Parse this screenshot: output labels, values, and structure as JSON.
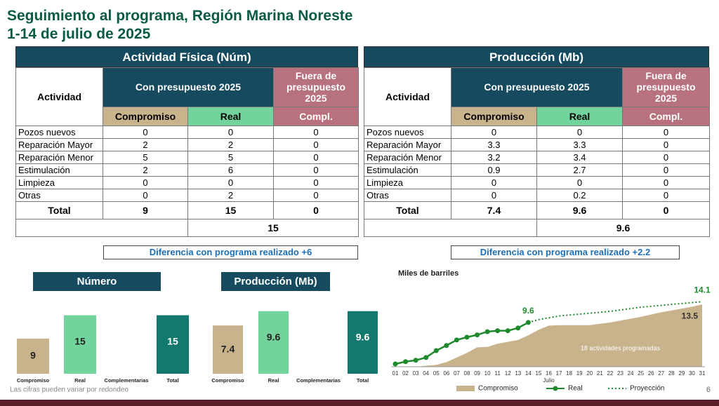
{
  "title_line1": "Seguimiento al programa, Región Marina Noreste",
  "title_line2": "1-14 de julio de 2025",
  "tables": [
    {
      "title": "Actividad Física (Núm)",
      "header_actividad": "Actividad",
      "header_con": "Con presupuesto 2025",
      "header_fuera": "Fuera de presupuesto 2025",
      "header_comp": "Compromiso",
      "header_real": "Real",
      "header_compl": "Compl.",
      "rows": [
        [
          "Pozos nuevos",
          0,
          0,
          0
        ],
        [
          "Reparación Mayor",
          2,
          2,
          0
        ],
        [
          "Reparación Menor",
          5,
          5,
          0
        ],
        [
          "Estimulación",
          2,
          6,
          0
        ],
        [
          "Limpieza",
          0,
          0,
          0
        ],
        [
          "Otras",
          0,
          2,
          0
        ]
      ],
      "total": [
        "Total",
        9,
        15,
        0
      ],
      "total_sum": 15,
      "difference": "Diferencia con programa realizado  +6"
    },
    {
      "title": "Producción (Mb)",
      "header_actividad": "Actividad",
      "header_con": "Con presupuesto 2025",
      "header_fuera": "Fuera de presupuesto 2025",
      "header_comp": "Compromiso",
      "header_real": "Real",
      "header_compl": "Compl.",
      "rows": [
        [
          "Pozos nuevos",
          0,
          0,
          0
        ],
        [
          "Reparación Mayor",
          3.3,
          3.3,
          0
        ],
        [
          "Reparación Menor",
          3.2,
          3.4,
          0
        ],
        [
          "Estimulación",
          0.9,
          2.7,
          0
        ],
        [
          "Limpieza",
          0,
          0,
          0
        ],
        [
          "Otras",
          0,
          0.2,
          0
        ]
      ],
      "total": [
        "Total",
        7.4,
        9.6,
        0
      ],
      "total_sum": 9.6,
      "difference": "Diferencia con programa realizado +2.2"
    }
  ],
  "chart_data": [
    {
      "type": "bar",
      "title": "Número",
      "categories": [
        "Compromiso",
        "Real",
        "Complementarias",
        "Total"
      ],
      "values": [
        9,
        15,
        null,
        15
      ],
      "colors": [
        "#c8b38c",
        "#72d39c",
        null,
        "#13786e"
      ],
      "ylim": [
        0,
        16
      ]
    },
    {
      "type": "bar",
      "title": "Producción (Mb)",
      "categories": [
        "Compromiso",
        "Real",
        "Complementarias",
        "Total"
      ],
      "values": [
        7.4,
        9.6,
        null,
        9.6
      ],
      "colors": [
        "#c8b38c",
        "#72d39c",
        null,
        "#13786e"
      ],
      "ylim": [
        0,
        10
      ]
    },
    {
      "type": "line",
      "title": "Miles de barriles",
      "x_label": "Julio",
      "annotation": "18 actividades programadas",
      "categories": [
        "01",
        "02",
        "03",
        "04",
        "05",
        "06",
        "07",
        "08",
        "09",
        "10",
        "11",
        "12",
        "13",
        "14",
        "15",
        "16",
        "17",
        "18",
        "19",
        "20",
        "21",
        "22",
        "23",
        "24",
        "25",
        "26",
        "27",
        "28",
        "29",
        "30",
        "31"
      ],
      "ylim": [
        0,
        15.5
      ],
      "series": [
        {
          "name": "Compromiso",
          "kind": "area",
          "color": "#c8b38c",
          "values": [
            0,
            0,
            0,
            0.2,
            0.4,
            1.0,
            2.0,
            3.0,
            4.2,
            4.3,
            5.0,
            5.4,
            5.8,
            6.8,
            8.0,
            8.9,
            9.0,
            9.0,
            9.0,
            9.0,
            9.3,
            9.6,
            10.0,
            10.4,
            10.8,
            11.3,
            11.8,
            12.2,
            12.6,
            13.0,
            13.5
          ]
        },
        {
          "name": "Real",
          "kind": "line",
          "color": "#1e8a2c",
          "values": [
            0.6,
            1.1,
            1.4,
            2.0,
            3.5,
            4.6,
            5.8,
            6.4,
            6.9,
            7.6,
            7.8,
            7.8,
            8.4,
            9.6,
            null,
            null,
            null,
            null,
            null,
            null,
            null,
            null,
            null,
            null,
            null,
            null,
            null,
            null,
            null,
            null,
            null
          ]
        },
        {
          "name": "Proyección",
          "kind": "dotted",
          "color": "#1e8a2c",
          "values": [
            null,
            null,
            null,
            null,
            null,
            null,
            null,
            null,
            null,
            null,
            null,
            null,
            null,
            9.6,
            10.2,
            10.6,
            11.0,
            11.2,
            11.4,
            11.6,
            11.8,
            12.0,
            12.3,
            12.6,
            12.9,
            13.1,
            13.3,
            13.5,
            13.7,
            13.9,
            14.1
          ]
        }
      ]
    }
  ],
  "footnote": "Las cifras pueden variar por redondeo",
  "page_number": "6"
}
